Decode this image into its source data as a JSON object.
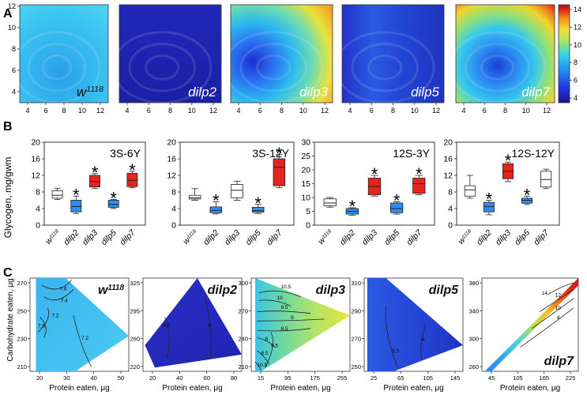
{
  "colors": {
    "scale": [
      "#1a1aa8",
      "#2a3be8",
      "#1f86f2",
      "#2bc4f0",
      "#7fe08a",
      "#e6e23a",
      "#f59a1e",
      "#e2231a",
      "#a8161a"
    ],
    "box_wt": "#ffffff",
    "box_blue": "#2e8ef5",
    "box_red": "#e8221c"
  },
  "panel_labels": {
    "a": "A",
    "b": "B",
    "c": "C"
  },
  "heatmaps": [
    {
      "label": "w1118",
      "base": "w",
      "sup": "1118",
      "italic": true,
      "pal": "wt"
    },
    {
      "label": "dilp2",
      "base": "dilp2",
      "sup": "",
      "italic": true,
      "pal": "d2"
    },
    {
      "label": "dilp3",
      "base": "dilp3",
      "sup": "",
      "italic": true,
      "pal": "d3"
    },
    {
      "label": "dilp5",
      "base": "dilp5",
      "sup": "",
      "italic": true,
      "pal": "d5"
    },
    {
      "label": "dilp7",
      "base": "dilp7",
      "sup": "",
      "italic": true,
      "pal": "d7"
    }
  ],
  "heatmap_axes": {
    "x_ticks": [
      "4",
      "6",
      "8",
      "10",
      "12"
    ],
    "y_ticks": [
      "4",
      "6",
      "8",
      "10",
      "12"
    ]
  },
  "colorbar": {
    "ticks": [
      "4",
      "6",
      "8",
      "10",
      "12",
      "14"
    ]
  },
  "chart_data": [
    {
      "type": "box",
      "title": "3S-6Y",
      "ylabel": "Glycogen, mg/gwm",
      "ylim": [
        0,
        20
      ],
      "yticks": [
        0,
        4,
        8,
        12,
        16,
        20
      ],
      "categories": [
        "w1118",
        "dilp2",
        "dilp3",
        "dilp5",
        "dilp7"
      ],
      "boxes": [
        {
          "min": 6.2,
          "q1": 6.5,
          "median": 7.2,
          "q3": 8.3,
          "max": 8.9,
          "color": "white",
          "star": false
        },
        {
          "min": 2.8,
          "q1": 3.2,
          "median": 4.5,
          "q3": 6.0,
          "max": 7.0,
          "color": "blue",
          "star": true
        },
        {
          "min": 8.8,
          "q1": 9.2,
          "median": 10.5,
          "q3": 12.0,
          "max": 12.4,
          "color": "red",
          "star": true
        },
        {
          "min": 4.0,
          "q1": 4.3,
          "median": 5.0,
          "q3": 6.0,
          "max": 6.2,
          "color": "blue",
          "star": true
        },
        {
          "min": 9.0,
          "q1": 9.3,
          "median": 10.8,
          "q3": 12.5,
          "max": 13.0,
          "color": "red",
          "star": true
        }
      ]
    },
    {
      "type": "box",
      "title": "3S-12Y",
      "ylabel": "",
      "ylim": [
        0,
        20
      ],
      "yticks": [
        0,
        4,
        8,
        12,
        16,
        20
      ],
      "categories": [
        "w1118",
        "dilp2",
        "dilp3",
        "dilp5",
        "dilp7"
      ],
      "boxes": [
        {
          "min": 6.0,
          "q1": 6.3,
          "median": 6.6,
          "q3": 7.2,
          "max": 8.8,
          "color": "white",
          "star": false
        },
        {
          "min": 2.7,
          "q1": 3.0,
          "median": 3.6,
          "q3": 4.4,
          "max": 5.6,
          "color": "blue",
          "star": true
        },
        {
          "min": 6.0,
          "q1": 6.6,
          "median": 8.4,
          "q3": 9.8,
          "max": 10.6,
          "color": "white",
          "star": false
        },
        {
          "min": 2.8,
          "q1": 3.1,
          "median": 3.5,
          "q3": 4.3,
          "max": 5.0,
          "color": "blue",
          "star": true
        },
        {
          "min": 9.0,
          "q1": 9.5,
          "median": 14.0,
          "q3": 16.0,
          "max": 17.0,
          "color": "red",
          "star": true
        }
      ]
    },
    {
      "type": "box",
      "title": "12S-3Y",
      "ylabel": "",
      "ylim": [
        0,
        30
      ],
      "yticks": [
        0,
        5,
        10,
        15,
        20,
        25,
        30
      ],
      "categories": [
        "w1118",
        "dilp2",
        "dilp3",
        "dilp5",
        "dilp7"
      ],
      "boxes": [
        {
          "min": 6.5,
          "q1": 7.0,
          "median": 8.0,
          "q3": 9.5,
          "max": 10.0,
          "color": "white",
          "star": false
        },
        {
          "min": 3.5,
          "q1": 4.0,
          "median": 5.0,
          "q3": 6.0,
          "max": 6.3,
          "color": "blue",
          "star": true
        },
        {
          "min": 10.5,
          "q1": 11.0,
          "median": 14.0,
          "q3": 17.0,
          "max": 18.0,
          "color": "red",
          "star": true
        },
        {
          "min": 4.0,
          "q1": 4.5,
          "median": 6.0,
          "q3": 8.0,
          "max": 8.5,
          "color": "blue",
          "star": true
        },
        {
          "min": 11.0,
          "q1": 11.5,
          "median": 15.0,
          "q3": 17.0,
          "max": 18.0,
          "color": "red",
          "star": true
        }
      ]
    },
    {
      "type": "box",
      "title": "12S-12Y",
      "ylabel": "",
      "ylim": [
        0,
        20
      ],
      "yticks": [
        0,
        4,
        8,
        12,
        16,
        20
      ],
      "categories": [
        "w1118",
        "dilp2",
        "dilp3",
        "dilp5",
        "dilp7"
      ],
      "boxes": [
        {
          "min": 6.5,
          "q1": 7.0,
          "median": 8.5,
          "q3": 9.5,
          "max": 12.0,
          "color": "white",
          "star": false
        },
        {
          "min": 2.5,
          "q1": 3.2,
          "median": 4.5,
          "q3": 5.5,
          "max": 6.0,
          "color": "blue",
          "star": true
        },
        {
          "min": 10.5,
          "q1": 11.2,
          "median": 13.0,
          "q3": 14.8,
          "max": 15.2,
          "color": "red",
          "star": true
        },
        {
          "min": 5.0,
          "q1": 5.3,
          "median": 6.0,
          "q3": 6.5,
          "max": 7.0,
          "color": "blue",
          "star": true
        },
        {
          "min": 8.8,
          "q1": 9.2,
          "median": 11.0,
          "q3": 13.0,
          "max": 13.5,
          "color": "white",
          "star": false
        }
      ]
    }
  ],
  "box_xlabels": [
    {
      "base": "w",
      "sup": "1118"
    },
    {
      "base": "dilp2",
      "sup": ""
    },
    {
      "base": "dilp3",
      "sup": ""
    },
    {
      "base": "dilp5",
      "sup": ""
    },
    {
      "base": "dilp7",
      "sup": ""
    }
  ],
  "box_star": "*",
  "shapes": [
    {
      "base": "w",
      "sup": "1118",
      "pal": "wt",
      "x_ticks": [
        "20",
        "30",
        "40",
        "50"
      ],
      "y_ticks": [
        "270",
        "250",
        "230",
        "210"
      ],
      "contours": [
        "7.6",
        "7.4",
        "7.2",
        "7.6",
        "7.2"
      ]
    },
    {
      "base": "dilp2",
      "sup": "",
      "pal": "d2",
      "x_ticks": [
        "20",
        "40",
        "60",
        "80"
      ],
      "y_ticks": [
        "325",
        "295",
        "260",
        "220"
      ],
      "contours": [
        "4.2",
        "4"
      ]
    },
    {
      "base": "dilp3",
      "sup": "",
      "pal": "d3",
      "x_ticks": [
        "15",
        "95",
        "175",
        "255"
      ],
      "y_ticks": [
        "300",
        "270",
        "240",
        "210"
      ],
      "contours": [
        "10.5",
        "10",
        "9.5",
        "9",
        "8.5",
        "8",
        "8.5",
        "9.5",
        "10.5"
      ]
    },
    {
      "base": "dilp5",
      "sup": "",
      "pal": "d5",
      "x_ticks": [
        "25",
        "65",
        "105",
        "145"
      ],
      "y_ticks": [
        "310",
        "290",
        "270",
        "250"
      ],
      "contours": [
        "4",
        "5.5"
      ]
    },
    {
      "base": "dilp7",
      "sup": "",
      "pal": "d7",
      "x_ticks": [
        "45",
        "105",
        "165",
        "225"
      ],
      "y_ticks": [
        "380",
        "340",
        "300",
        "260"
      ],
      "contours": [
        "14",
        "12",
        "10",
        "8"
      ]
    }
  ],
  "shape_axes": {
    "xlabel": "Protein eaten, μg",
    "ylabel": "Carbohydrate eaten, μg"
  }
}
